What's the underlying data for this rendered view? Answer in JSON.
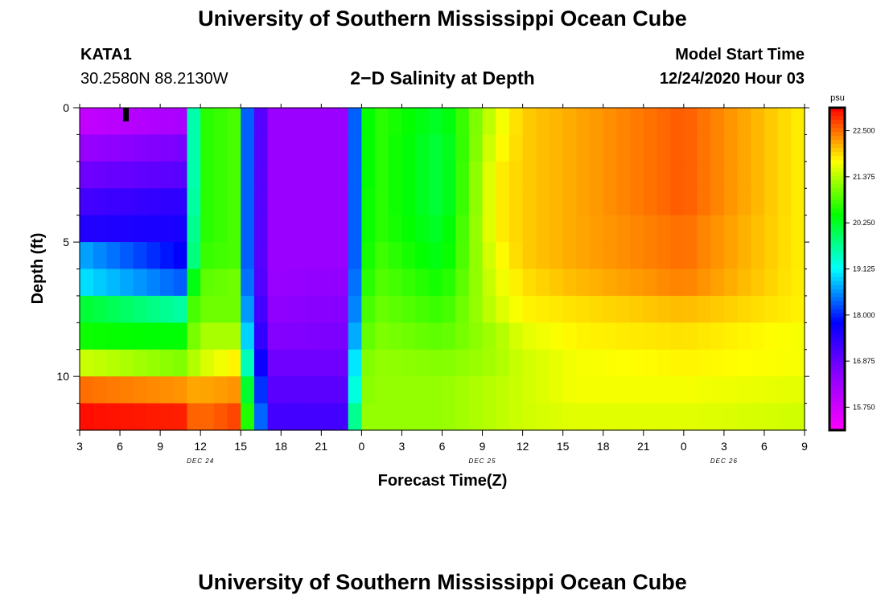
{
  "page": {
    "title_top": "University of Southern Mississippi Ocean Cube",
    "title_bottom": "University of Southern Mississippi Ocean Cube",
    "station": "KATA1",
    "coords": "30.2580N 88.2130W",
    "plot_title": "2−D Salinity at Depth",
    "model_label": "Model Start Time",
    "model_time": "12/24/2020 Hour 03"
  },
  "chart_data": {
    "type": "heatmap",
    "title": "2−D Salinity at Depth",
    "xlabel": "Forecast Time(Z)",
    "ylabel": "Depth (ft)",
    "x_tick_labels": [
      "3",
      "6",
      "9",
      "12",
      "15",
      "18",
      "21",
      "0",
      "3",
      "6",
      "9",
      "12",
      "15",
      "18",
      "21",
      "0",
      "3",
      "6",
      "9"
    ],
    "day_labels": [
      {
        "label": "DEC 24",
        "at_tick": 3
      },
      {
        "label": "DEC 25",
        "at_tick": 10
      },
      {
        "label": "DEC 26",
        "at_tick": 16
      }
    ],
    "x_range_hours": [
      0,
      54
    ],
    "y_ticks": [
      0,
      5,
      10
    ],
    "y_tick_labels": [
      "0",
      "5",
      "10"
    ],
    "y_range_ft": [
      0,
      12
    ],
    "colorbar": {
      "unit": "psu",
      "min": 15.19,
      "max": 23.06,
      "tick_values": [
        15.75,
        16.875,
        18.0,
        19.125,
        20.25,
        21.375,
        22.5
      ],
      "tick_labels": [
        "15.750",
        "16.875",
        "18.000",
        "19.125",
        "20.250",
        "21.375",
        "22.500"
      ],
      "colors": [
        "#ff00ff",
        "#9000ff",
        "#0000ff",
        "#00ffff",
        "#00ff00",
        "#ffff00",
        "#ff0000"
      ]
    },
    "depth_layers_ft": [
      0.5,
      1.5,
      2.5,
      3.5,
      4.5,
      5.5,
      6.5,
      7.5,
      8.5,
      9.5,
      10.5,
      11.5
    ],
    "time_keys_hours": [
      0,
      7.5,
      8,
      9,
      11.5,
      12.5,
      14,
      20,
      20.5,
      21,
      22,
      27,
      31,
      33,
      37,
      45,
      54
    ],
    "salinity_psu": [
      [
        15.9,
        16.2,
        18.5,
        20.6,
        20.8,
        18.3,
        16.4,
        16.4,
        18.3,
        20.2,
        20.7,
        20.2,
        21.6,
        22.0,
        22.2,
        22.6,
        21.8
      ],
      [
        16.4,
        16.7,
        18.5,
        20.6,
        20.8,
        18.3,
        16.4,
        16.4,
        18.3,
        20.2,
        20.7,
        20.1,
        21.7,
        22.0,
        22.2,
        22.6,
        21.8
      ],
      [
        16.8,
        17.0,
        18.5,
        20.6,
        20.8,
        18.3,
        16.4,
        16.4,
        18.3,
        20.2,
        20.7,
        20.1,
        21.8,
        22.0,
        22.2,
        22.6,
        21.8
      ],
      [
        17.2,
        17.4,
        18.6,
        20.6,
        20.8,
        18.3,
        16.4,
        16.4,
        18.3,
        20.3,
        20.7,
        20.1,
        21.8,
        22.0,
        22.2,
        22.6,
        21.8
      ],
      [
        17.5,
        17.6,
        18.8,
        20.6,
        20.8,
        18.3,
        16.4,
        16.4,
        18.3,
        20.3,
        20.7,
        20.2,
        21.8,
        22.0,
        22.2,
        22.5,
        21.8
      ],
      [
        18.7,
        17.8,
        18.9,
        20.7,
        20.8,
        18.3,
        16.4,
        16.4,
        18.3,
        20.3,
        20.8,
        20.3,
        21.7,
        22.0,
        22.2,
        22.5,
        21.8
      ],
      [
        19.0,
        18.3,
        19.8,
        20.9,
        21.0,
        18.4,
        16.4,
        16.5,
        18.4,
        20.4,
        20.9,
        20.5,
        21.6,
        21.9,
        22.1,
        22.4,
        21.8
      ],
      [
        20.2,
        19.6,
        20.6,
        21.0,
        21.0,
        18.6,
        16.5,
        16.6,
        18.5,
        20.6,
        21.0,
        20.7,
        21.5,
        21.8,
        21.9,
        22.1,
        21.8
      ],
      [
        20.5,
        20.4,
        20.8,
        21.3,
        21.3,
        18.9,
        16.6,
        16.7,
        18.7,
        20.8,
        21.1,
        20.9,
        21.3,
        21.6,
        21.8,
        21.9,
        21.7
      ],
      [
        21.5,
        21.1,
        21.2,
        21.5,
        21.8,
        19.5,
        16.8,
        16.8,
        19.0,
        21.0,
        21.2,
        21.1,
        21.3,
        21.5,
        21.7,
        21.8,
        21.7
      ],
      [
        22.5,
        22.3,
        22.2,
        22.2,
        22.3,
        20.2,
        17.0,
        17.0,
        19.3,
        21.1,
        21.2,
        21.2,
        21.4,
        21.5,
        21.7,
        21.7,
        21.6
      ],
      [
        23.0,
        22.9,
        22.6,
        22.5,
        22.7,
        20.6,
        17.2,
        17.2,
        19.7,
        21.2,
        21.2,
        21.2,
        21.4,
        21.5,
        21.6,
        21.6,
        21.5
      ]
    ]
  }
}
